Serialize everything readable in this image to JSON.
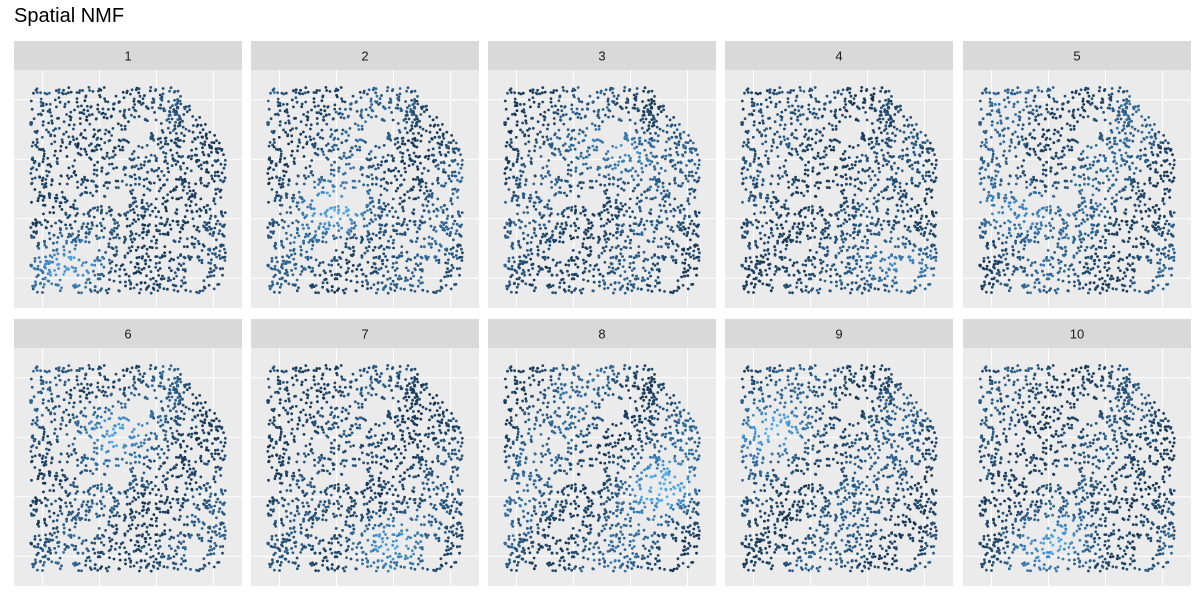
{
  "title": "Spatial NMF",
  "colors": {
    "panel_background": "#ebebeb",
    "strip_background": "#d9d9d9",
    "grid": "#ffffff",
    "low": "#132b43",
    "high": "#56b1f7"
  },
  "chart_data": {
    "type": "scatter",
    "title": "Spatial NMF",
    "facet_layout": {
      "rows": 2,
      "cols": 5
    },
    "color_scale": {
      "low": "#132b43",
      "high": "#56b1f7"
    },
    "axes": {
      "tick_labels_shown": false,
      "grid": true
    },
    "facets": [
      {
        "label": "1"
      },
      {
        "label": "2"
      },
      {
        "label": "3"
      },
      {
        "label": "4"
      },
      {
        "label": "5"
      },
      {
        "label": "6"
      },
      {
        "label": "7"
      },
      {
        "label": "8"
      },
      {
        "label": "9"
      },
      {
        "label": "10"
      }
    ]
  }
}
